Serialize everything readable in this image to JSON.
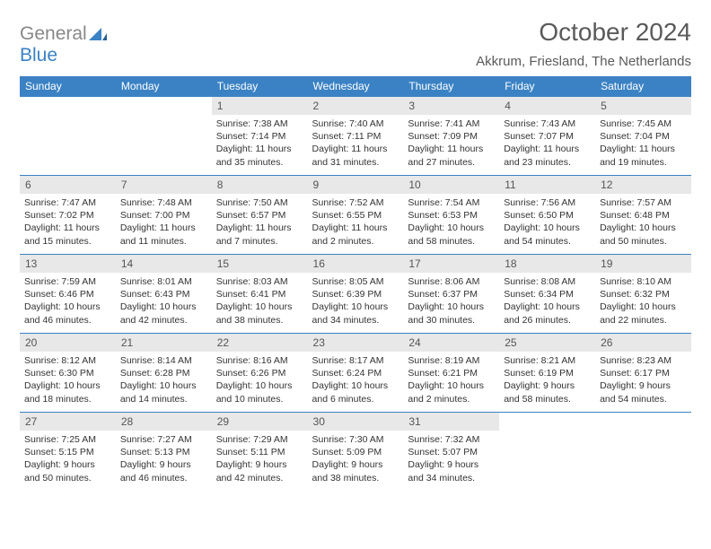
{
  "brand": {
    "part1": "General",
    "part2": "Blue"
  },
  "title": "October 2024",
  "location": "Akkrum, Friesland, The Netherlands",
  "colors": {
    "header_bg": "#3b82c4",
    "header_text": "#ffffff",
    "daynum_bg": "#e8e8e8",
    "border": "#3b82c4",
    "logo_gray": "#888888",
    "logo_blue": "#3b82c4"
  },
  "day_headers": [
    "Sunday",
    "Monday",
    "Tuesday",
    "Wednesday",
    "Thursday",
    "Friday",
    "Saturday"
  ],
  "weeks": [
    [
      null,
      null,
      {
        "num": "1",
        "sunrise": "Sunrise: 7:38 AM",
        "sunset": "Sunset: 7:14 PM",
        "daylight": "Daylight: 11 hours and 35 minutes."
      },
      {
        "num": "2",
        "sunrise": "Sunrise: 7:40 AM",
        "sunset": "Sunset: 7:11 PM",
        "daylight": "Daylight: 11 hours and 31 minutes."
      },
      {
        "num": "3",
        "sunrise": "Sunrise: 7:41 AM",
        "sunset": "Sunset: 7:09 PM",
        "daylight": "Daylight: 11 hours and 27 minutes."
      },
      {
        "num": "4",
        "sunrise": "Sunrise: 7:43 AM",
        "sunset": "Sunset: 7:07 PM",
        "daylight": "Daylight: 11 hours and 23 minutes."
      },
      {
        "num": "5",
        "sunrise": "Sunrise: 7:45 AM",
        "sunset": "Sunset: 7:04 PM",
        "daylight": "Daylight: 11 hours and 19 minutes."
      }
    ],
    [
      {
        "num": "6",
        "sunrise": "Sunrise: 7:47 AM",
        "sunset": "Sunset: 7:02 PM",
        "daylight": "Daylight: 11 hours and 15 minutes."
      },
      {
        "num": "7",
        "sunrise": "Sunrise: 7:48 AM",
        "sunset": "Sunset: 7:00 PM",
        "daylight": "Daylight: 11 hours and 11 minutes."
      },
      {
        "num": "8",
        "sunrise": "Sunrise: 7:50 AM",
        "sunset": "Sunset: 6:57 PM",
        "daylight": "Daylight: 11 hours and 7 minutes."
      },
      {
        "num": "9",
        "sunrise": "Sunrise: 7:52 AM",
        "sunset": "Sunset: 6:55 PM",
        "daylight": "Daylight: 11 hours and 2 minutes."
      },
      {
        "num": "10",
        "sunrise": "Sunrise: 7:54 AM",
        "sunset": "Sunset: 6:53 PM",
        "daylight": "Daylight: 10 hours and 58 minutes."
      },
      {
        "num": "11",
        "sunrise": "Sunrise: 7:56 AM",
        "sunset": "Sunset: 6:50 PM",
        "daylight": "Daylight: 10 hours and 54 minutes."
      },
      {
        "num": "12",
        "sunrise": "Sunrise: 7:57 AM",
        "sunset": "Sunset: 6:48 PM",
        "daylight": "Daylight: 10 hours and 50 minutes."
      }
    ],
    [
      {
        "num": "13",
        "sunrise": "Sunrise: 7:59 AM",
        "sunset": "Sunset: 6:46 PM",
        "daylight": "Daylight: 10 hours and 46 minutes."
      },
      {
        "num": "14",
        "sunrise": "Sunrise: 8:01 AM",
        "sunset": "Sunset: 6:43 PM",
        "daylight": "Daylight: 10 hours and 42 minutes."
      },
      {
        "num": "15",
        "sunrise": "Sunrise: 8:03 AM",
        "sunset": "Sunset: 6:41 PM",
        "daylight": "Daylight: 10 hours and 38 minutes."
      },
      {
        "num": "16",
        "sunrise": "Sunrise: 8:05 AM",
        "sunset": "Sunset: 6:39 PM",
        "daylight": "Daylight: 10 hours and 34 minutes."
      },
      {
        "num": "17",
        "sunrise": "Sunrise: 8:06 AM",
        "sunset": "Sunset: 6:37 PM",
        "daylight": "Daylight: 10 hours and 30 minutes."
      },
      {
        "num": "18",
        "sunrise": "Sunrise: 8:08 AM",
        "sunset": "Sunset: 6:34 PM",
        "daylight": "Daylight: 10 hours and 26 minutes."
      },
      {
        "num": "19",
        "sunrise": "Sunrise: 8:10 AM",
        "sunset": "Sunset: 6:32 PM",
        "daylight": "Daylight: 10 hours and 22 minutes."
      }
    ],
    [
      {
        "num": "20",
        "sunrise": "Sunrise: 8:12 AM",
        "sunset": "Sunset: 6:30 PM",
        "daylight": "Daylight: 10 hours and 18 minutes."
      },
      {
        "num": "21",
        "sunrise": "Sunrise: 8:14 AM",
        "sunset": "Sunset: 6:28 PM",
        "daylight": "Daylight: 10 hours and 14 minutes."
      },
      {
        "num": "22",
        "sunrise": "Sunrise: 8:16 AM",
        "sunset": "Sunset: 6:26 PM",
        "daylight": "Daylight: 10 hours and 10 minutes."
      },
      {
        "num": "23",
        "sunrise": "Sunrise: 8:17 AM",
        "sunset": "Sunset: 6:24 PM",
        "daylight": "Daylight: 10 hours and 6 minutes."
      },
      {
        "num": "24",
        "sunrise": "Sunrise: 8:19 AM",
        "sunset": "Sunset: 6:21 PM",
        "daylight": "Daylight: 10 hours and 2 minutes."
      },
      {
        "num": "25",
        "sunrise": "Sunrise: 8:21 AM",
        "sunset": "Sunset: 6:19 PM",
        "daylight": "Daylight: 9 hours and 58 minutes."
      },
      {
        "num": "26",
        "sunrise": "Sunrise: 8:23 AM",
        "sunset": "Sunset: 6:17 PM",
        "daylight": "Daylight: 9 hours and 54 minutes."
      }
    ],
    [
      {
        "num": "27",
        "sunrise": "Sunrise: 7:25 AM",
        "sunset": "Sunset: 5:15 PM",
        "daylight": "Daylight: 9 hours and 50 minutes."
      },
      {
        "num": "28",
        "sunrise": "Sunrise: 7:27 AM",
        "sunset": "Sunset: 5:13 PM",
        "daylight": "Daylight: 9 hours and 46 minutes."
      },
      {
        "num": "29",
        "sunrise": "Sunrise: 7:29 AM",
        "sunset": "Sunset: 5:11 PM",
        "daylight": "Daylight: 9 hours and 42 minutes."
      },
      {
        "num": "30",
        "sunrise": "Sunrise: 7:30 AM",
        "sunset": "Sunset: 5:09 PM",
        "daylight": "Daylight: 9 hours and 38 minutes."
      },
      {
        "num": "31",
        "sunrise": "Sunrise: 7:32 AM",
        "sunset": "Sunset: 5:07 PM",
        "daylight": "Daylight: 9 hours and 34 minutes."
      },
      null,
      null
    ]
  ]
}
